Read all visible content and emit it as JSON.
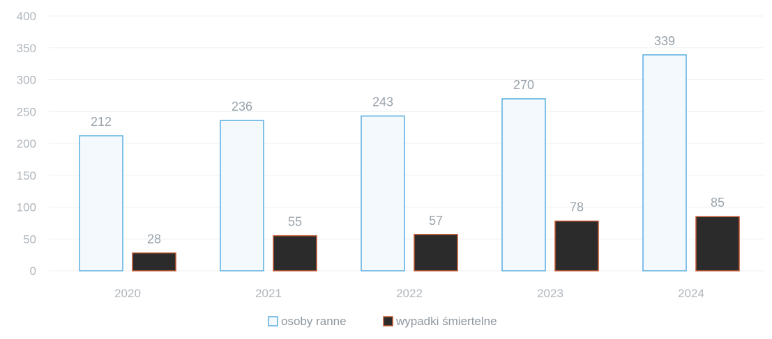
{
  "chart_data": {
    "type": "bar",
    "title": "",
    "xlabel": "",
    "ylabel": "",
    "categories": [
      "2020",
      "2021",
      "2022",
      "2023",
      "2024"
    ],
    "series": [
      {
        "name": "osoby ranne",
        "values": [
          212,
          236,
          243,
          270,
          339
        ]
      },
      {
        "name": "wypadki śmiertelne",
        "values": [
          28,
          55,
          57,
          78,
          85
        ]
      }
    ],
    "ylim": [
      0,
      400
    ],
    "yticks": [
      "0",
      "50",
      "100",
      "150",
      "200",
      "250",
      "300",
      "350",
      "400"
    ],
    "grid": true,
    "legend_position": "bottom-center",
    "colors": {
      "series_0_fill": "#f3f9fd",
      "series_0_stroke": "#5aaee0",
      "series_1_fill": "#2b2b2b",
      "series_1_stroke": "#c0542e",
      "grid": "#eceff1"
    }
  }
}
